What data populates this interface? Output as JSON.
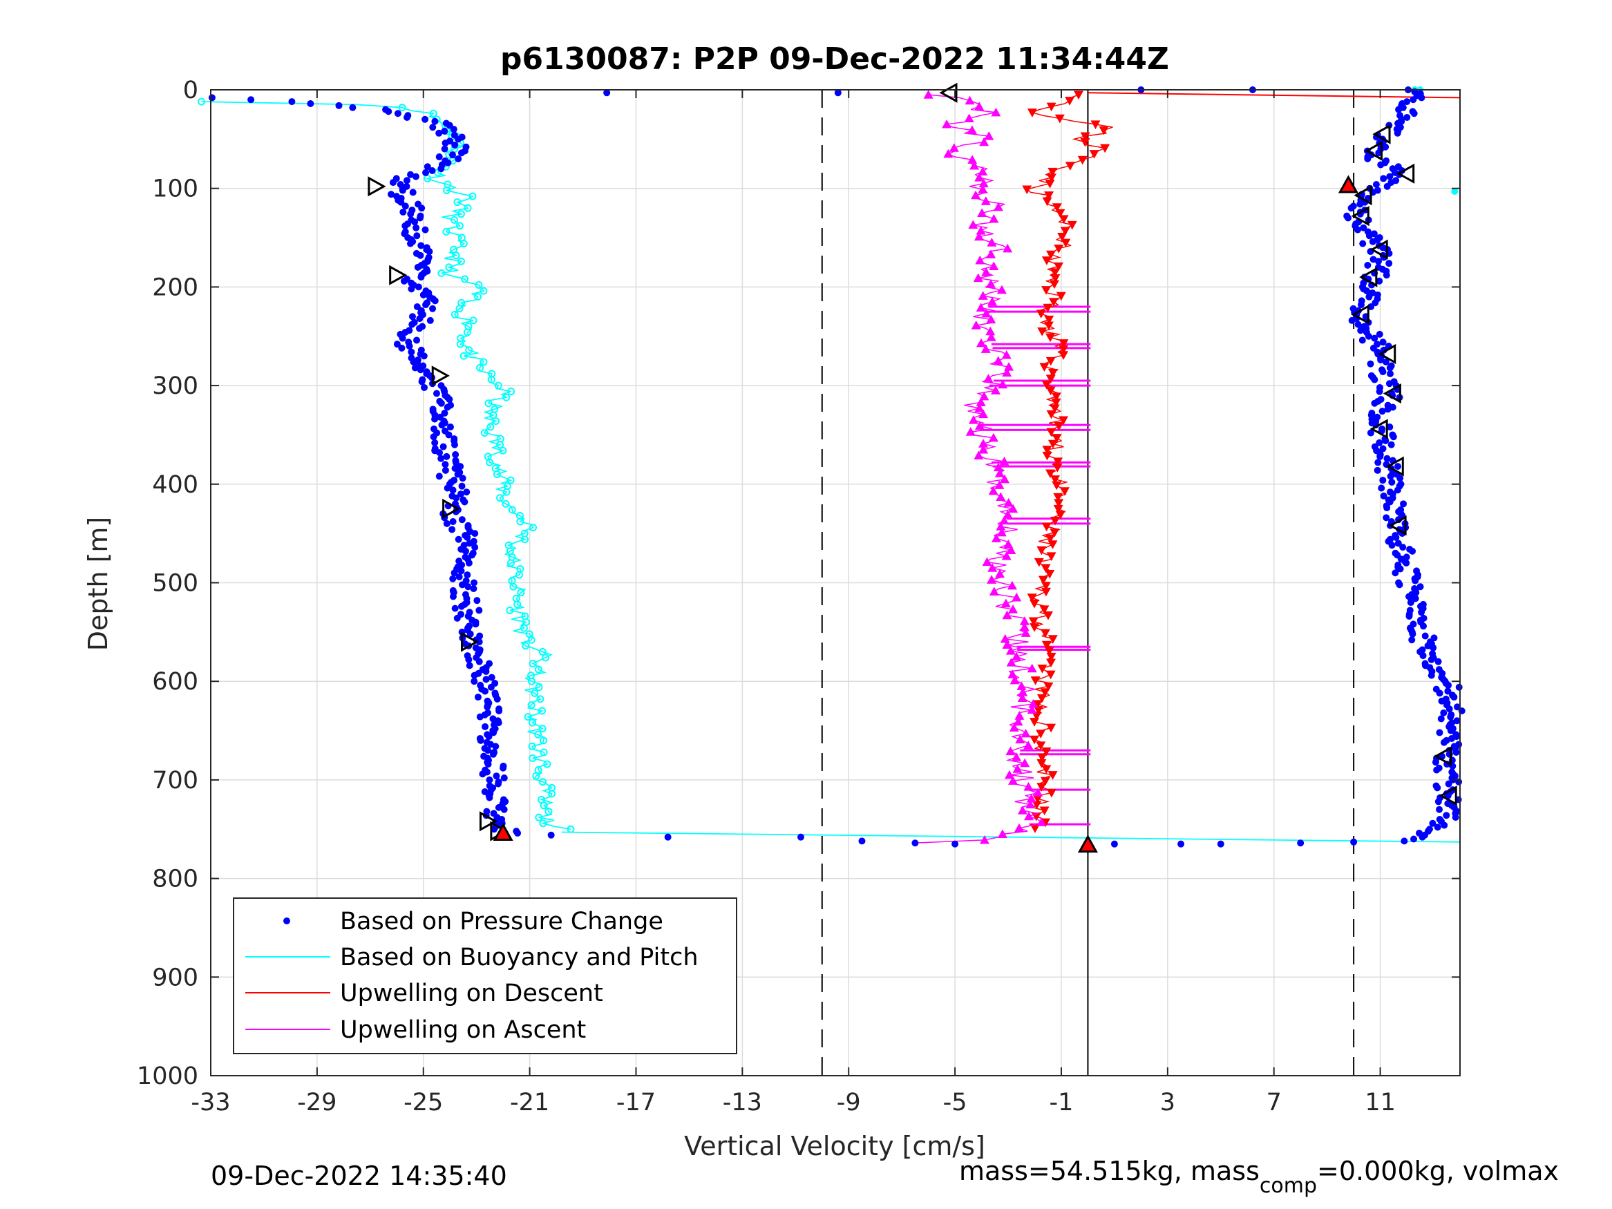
{
  "chart_data": {
    "type": "scatter",
    "title": "p6130087: P2P 09-Dec-2022 11:34:44Z",
    "xlabel": "Vertical Velocity [cm/s]",
    "ylabel": "Depth [m]",
    "xlim": [
      -33,
      14
    ],
    "ylim": [
      0,
      1000
    ],
    "y_reversed": true,
    "grid": true,
    "xticks": [
      -33,
      -29,
      -25,
      -21,
      -17,
      -13,
      -9,
      -5,
      -1,
      3,
      7,
      11
    ],
    "yticks": [
      0,
      100,
      200,
      300,
      400,
      500,
      600,
      700,
      800,
      900,
      1000
    ],
    "reference_lines": [
      {
        "style": "dashed",
        "x": -10
      },
      {
        "style": "dashed",
        "x": 10
      },
      {
        "style": "solid",
        "x": 0
      }
    ],
    "legend": {
      "placement": "bottom-left",
      "entries": [
        {
          "label": "Based on Pressure Change",
          "color": "#0000ff",
          "marker": "dot"
        },
        {
          "label": "Based on Buoyancy and Pitch",
          "color": "#00ffff",
          "marker": "line"
        },
        {
          "label": "Upwelling on Descent",
          "color": "#ff0000",
          "marker": "line"
        },
        {
          "label": "Upwelling on Ascent",
          "color": "#ff00ff",
          "marker": "line"
        }
      ]
    },
    "series": [
      {
        "key": "pressure_descent",
        "color": "#0000ff",
        "marker": "dot",
        "points": [
          [
            -32.5,
            8
          ],
          [
            -30,
            12
          ],
          [
            -28,
            16
          ],
          [
            -26.5,
            20
          ],
          [
            -25.5,
            26
          ],
          [
            -24.5,
            34
          ],
          [
            -24.0,
            45
          ],
          [
            -23.8,
            60
          ],
          [
            -24.2,
            75
          ],
          [
            -25.0,
            85
          ],
          [
            -26.2,
            95
          ],
          [
            -25.8,
            105
          ],
          [
            -25.3,
            120
          ],
          [
            -25.4,
            140
          ],
          [
            -25.1,
            160
          ],
          [
            -25.2,
            180
          ],
          [
            -25.5,
            195
          ],
          [
            -24.8,
            215
          ],
          [
            -25.3,
            240
          ],
          [
            -25.6,
            260
          ],
          [
            -25.0,
            280
          ],
          [
            -24.6,
            300
          ],
          [
            -24.3,
            330
          ],
          [
            -24.2,
            360
          ],
          [
            -24.0,
            390
          ],
          [
            -23.7,
            410
          ],
          [
            -24.0,
            430
          ],
          [
            -23.4,
            450
          ],
          [
            -23.6,
            480
          ],
          [
            -23.4,
            520
          ],
          [
            -23.2,
            550
          ],
          [
            -22.9,
            580
          ],
          [
            -22.6,
            610
          ],
          [
            -22.5,
            650
          ],
          [
            -22.4,
            690
          ],
          [
            -22.3,
            720
          ],
          [
            -22.2,
            740
          ],
          [
            -21.9,
            752
          ],
          [
            -20.5,
            756
          ]
        ]
      },
      {
        "key": "pressure_ascent",
        "color": "#0000ff",
        "marker": "dot",
        "points": [
          [
            12.5,
            0
          ],
          [
            12.2,
            10
          ],
          [
            11.8,
            25
          ],
          [
            11.5,
            40
          ],
          [
            11.0,
            55
          ],
          [
            10.7,
            70
          ],
          [
            11.8,
            85
          ],
          [
            10.3,
            105
          ],
          [
            10.1,
            125
          ],
          [
            10.4,
            145
          ],
          [
            11.0,
            165
          ],
          [
            10.8,
            190
          ],
          [
            10.2,
            230
          ],
          [
            11.0,
            265
          ],
          [
            11.1,
            290
          ],
          [
            11.3,
            310
          ],
          [
            11.0,
            340
          ],
          [
            11.2,
            370
          ],
          [
            11.4,
            400
          ],
          [
            11.5,
            430
          ],
          [
            11.7,
            460
          ],
          [
            12.0,
            490
          ],
          [
            12.3,
            520
          ],
          [
            12.5,
            550
          ],
          [
            12.9,
            580
          ],
          [
            13.5,
            600
          ],
          [
            13.7,
            630
          ],
          [
            13.6,
            660
          ],
          [
            13.5,
            690
          ],
          [
            13.6,
            720
          ],
          [
            13.4,
            745
          ],
          [
            12.7,
            758
          ],
          [
            12.0,
            762
          ]
        ]
      },
      {
        "key": "pressure_bottom_turn",
        "color": "#0000ff",
        "marker": "dot",
        "points": [
          [
            -18.1,
            3
          ],
          [
            -9.4,
            3
          ],
          [
            2.0,
            0
          ],
          [
            6.2,
            0
          ],
          [
            -15.8,
            758
          ],
          [
            -10.8,
            758
          ],
          [
            -8.5,
            762
          ],
          [
            -6.5,
            764
          ],
          [
            -5.0,
            765
          ],
          [
            1.0,
            765
          ],
          [
            3.5,
            765
          ],
          [
            5.0,
            765
          ],
          [
            8.0,
            764
          ],
          [
            10.0,
            763
          ]
        ]
      },
      {
        "key": "buoyancy_descent",
        "color": "#00ffff",
        "marker": "circle-line",
        "points": [
          [
            -33,
            12
          ],
          [
            -29,
            14
          ],
          [
            -26,
            16
          ],
          [
            -25,
            22
          ],
          [
            -24.2,
            35
          ],
          [
            -23.6,
            50
          ],
          [
            -23.9,
            70
          ],
          [
            -24.5,
            90
          ],
          [
            -23.3,
            110
          ],
          [
            -24.0,
            130
          ],
          [
            -23.8,
            160
          ],
          [
            -24.0,
            190
          ],
          [
            -22.8,
            200
          ],
          [
            -23.7,
            220
          ],
          [
            -23.2,
            240
          ],
          [
            -23.4,
            260
          ],
          [
            -23.0,
            280
          ],
          [
            -22.0,
            305
          ],
          [
            -22.6,
            330
          ],
          [
            -22.3,
            360
          ],
          [
            -22.1,
            390
          ],
          [
            -21.9,
            420
          ],
          [
            -21.0,
            440
          ],
          [
            -21.7,
            470
          ],
          [
            -21.5,
            500
          ],
          [
            -21.4,
            530
          ],
          [
            -21.2,
            560
          ],
          [
            -20.5,
            570
          ],
          [
            -20.9,
            600
          ],
          [
            -20.8,
            640
          ],
          [
            -20.6,
            680
          ],
          [
            -20.5,
            710
          ],
          [
            -20.4,
            740
          ],
          [
            -19.8,
            750
          ]
        ]
      },
      {
        "key": "buoyancy_turn",
        "color": "#00ffff",
        "marker": "line",
        "points": [
          [
            -19.8,
            753
          ],
          [
            14,
            763
          ]
        ]
      },
      {
        "key": "buoyancy_surface",
        "color": "#00ffff",
        "marker": "circle",
        "points": [
          [
            12.3,
            0
          ],
          [
            12.5,
            0
          ],
          [
            13.8,
            103
          ]
        ]
      },
      {
        "key": "upwelling_descent",
        "color": "#ff0000",
        "marker": "triangle-down",
        "points": [
          [
            0,
            5
          ],
          [
            -1.0,
            15
          ],
          [
            -2.0,
            25
          ],
          [
            -0.5,
            32
          ],
          [
            1.0,
            40
          ],
          [
            -0.3,
            50
          ],
          [
            0.5,
            60
          ],
          [
            -0.5,
            75
          ],
          [
            -1.2,
            85
          ],
          [
            -2.0,
            100
          ],
          [
            -1.5,
            115
          ],
          [
            -1.0,
            130
          ],
          [
            -0.8,
            150
          ],
          [
            -1.3,
            170
          ],
          [
            -1.5,
            190
          ],
          [
            -1.2,
            210
          ],
          [
            -1.6,
            230
          ],
          [
            -1.2,
            260
          ],
          [
            -1.4,
            290
          ],
          [
            -1.2,
            320
          ],
          [
            -1.3,
            350
          ],
          [
            -1.2,
            380
          ],
          [
            -1.1,
            420
          ],
          [
            -1.6,
            460
          ],
          [
            -1.8,
            500
          ],
          [
            -1.7,
            540
          ],
          [
            -1.6,
            580
          ],
          [
            -1.8,
            620
          ],
          [
            -1.7,
            660
          ],
          [
            -1.6,
            700
          ],
          [
            -1.8,
            730
          ],
          [
            -2.0,
            750
          ]
        ]
      },
      {
        "key": "upwelling_ascent",
        "color": "#ff00ff",
        "marker": "triangle-up",
        "points": [
          [
            -5.5,
            5
          ],
          [
            -4.5,
            15
          ],
          [
            -3.5,
            25
          ],
          [
            -5.0,
            35
          ],
          [
            -4.0,
            50
          ],
          [
            -5.2,
            65
          ],
          [
            -3.8,
            80
          ],
          [
            -4.2,
            100
          ],
          [
            -3.5,
            120
          ],
          [
            -4.0,
            140
          ],
          [
            -3.3,
            160
          ],
          [
            -3.8,
            185
          ],
          [
            -3.5,
            210
          ],
          [
            -4.0,
            230
          ],
          [
            -3.6,
            260
          ],
          [
            -3.4,
            290
          ],
          [
            -4.3,
            320
          ],
          [
            -4.0,
            350
          ],
          [
            -3.6,
            380
          ],
          [
            -3.3,
            410
          ],
          [
            -3.0,
            440
          ],
          [
            -3.3,
            480
          ],
          [
            -3.0,
            520
          ],
          [
            -2.7,
            560
          ],
          [
            -2.5,
            600
          ],
          [
            -2.4,
            640
          ],
          [
            -2.6,
            680
          ],
          [
            -2.3,
            720
          ],
          [
            -2.2,
            745
          ],
          [
            -3.0,
            760
          ],
          [
            -8.0,
            765
          ]
        ]
      },
      {
        "key": "upwelling_descent_surface",
        "color": "#ff0000",
        "marker": "line",
        "points": [
          [
            0,
            3
          ],
          [
            14,
            8
          ]
        ]
      }
    ],
    "descent_ascent_connectors": {
      "color": "#ff00ff",
      "depths": [
        220,
        225,
        258,
        262,
        295,
        300,
        340,
        345,
        378,
        382,
        435,
        440,
        565,
        568,
        670,
        674,
        710,
        745
      ]
    },
    "highlight_markers": {
      "open_right_triangles": [
        [
          -26.8,
          98
        ],
        [
          -26.0,
          188
        ],
        [
          -24.4,
          290
        ],
        [
          -24.0,
          425
        ],
        [
          -23.3,
          560
        ],
        [
          -22.6,
          742
        ],
        [
          -22.2,
          752
        ]
      ],
      "open_left_triangles": [
        [
          -5.2,
          3
        ],
        [
          11.1,
          45
        ],
        [
          10.8,
          62
        ],
        [
          12.0,
          85
        ],
        [
          10.4,
          107
        ],
        [
          10.3,
          128
        ],
        [
          11.0,
          162
        ],
        [
          10.6,
          190
        ],
        [
          10.3,
          228
        ],
        [
          11.3,
          268
        ],
        [
          11.5,
          308
        ],
        [
          11.0,
          344
        ],
        [
          11.6,
          382
        ],
        [
          11.7,
          442
        ],
        [
          13.4,
          676
        ],
        [
          13.6,
          716
        ]
      ],
      "filled_triangles": [
        [
          9.8,
          97
        ],
        [
          -22.0,
          754
        ],
        [
          0.0,
          766
        ]
      ]
    }
  },
  "footer": {
    "timestamp": "09-Dec-2022 14:35:40",
    "mass_text_prefix": "mass=54.515kg, mass",
    "mass_text_subscript": "comp",
    "mass_text_suffix": "=0.000kg, volmax"
  }
}
